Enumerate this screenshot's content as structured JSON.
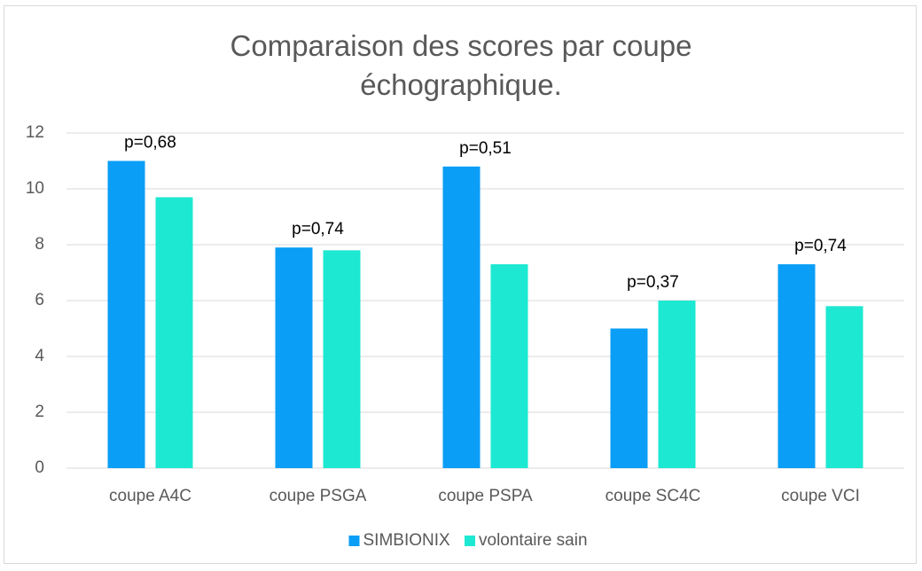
{
  "chart_data": {
    "type": "bar",
    "title": "Comparaison des scores par coupe échographique.",
    "categories": [
      "coupe A4C",
      "coupe PSGA",
      "coupe PSPA",
      "coupe SC4C",
      "coupe VCI"
    ],
    "series": [
      {
        "name": "SIMBIONIX",
        "color": "#0a9ef6",
        "values": [
          11,
          7.9,
          10.8,
          5,
          7.3
        ]
      },
      {
        "name": "volontaire sain",
        "color": "#1de8d2",
        "values": [
          9.7,
          7.8,
          7.3,
          6,
          5.8
        ]
      }
    ],
    "annotations": [
      "p=0,68",
      "p=0,74",
      "p=0,51",
      "p=0,37",
      "p=0,74"
    ],
    "ylim": [
      0,
      12
    ],
    "yticks": [
      0,
      2,
      4,
      6,
      8,
      10,
      12
    ],
    "grid": true,
    "legend": "bottom"
  }
}
